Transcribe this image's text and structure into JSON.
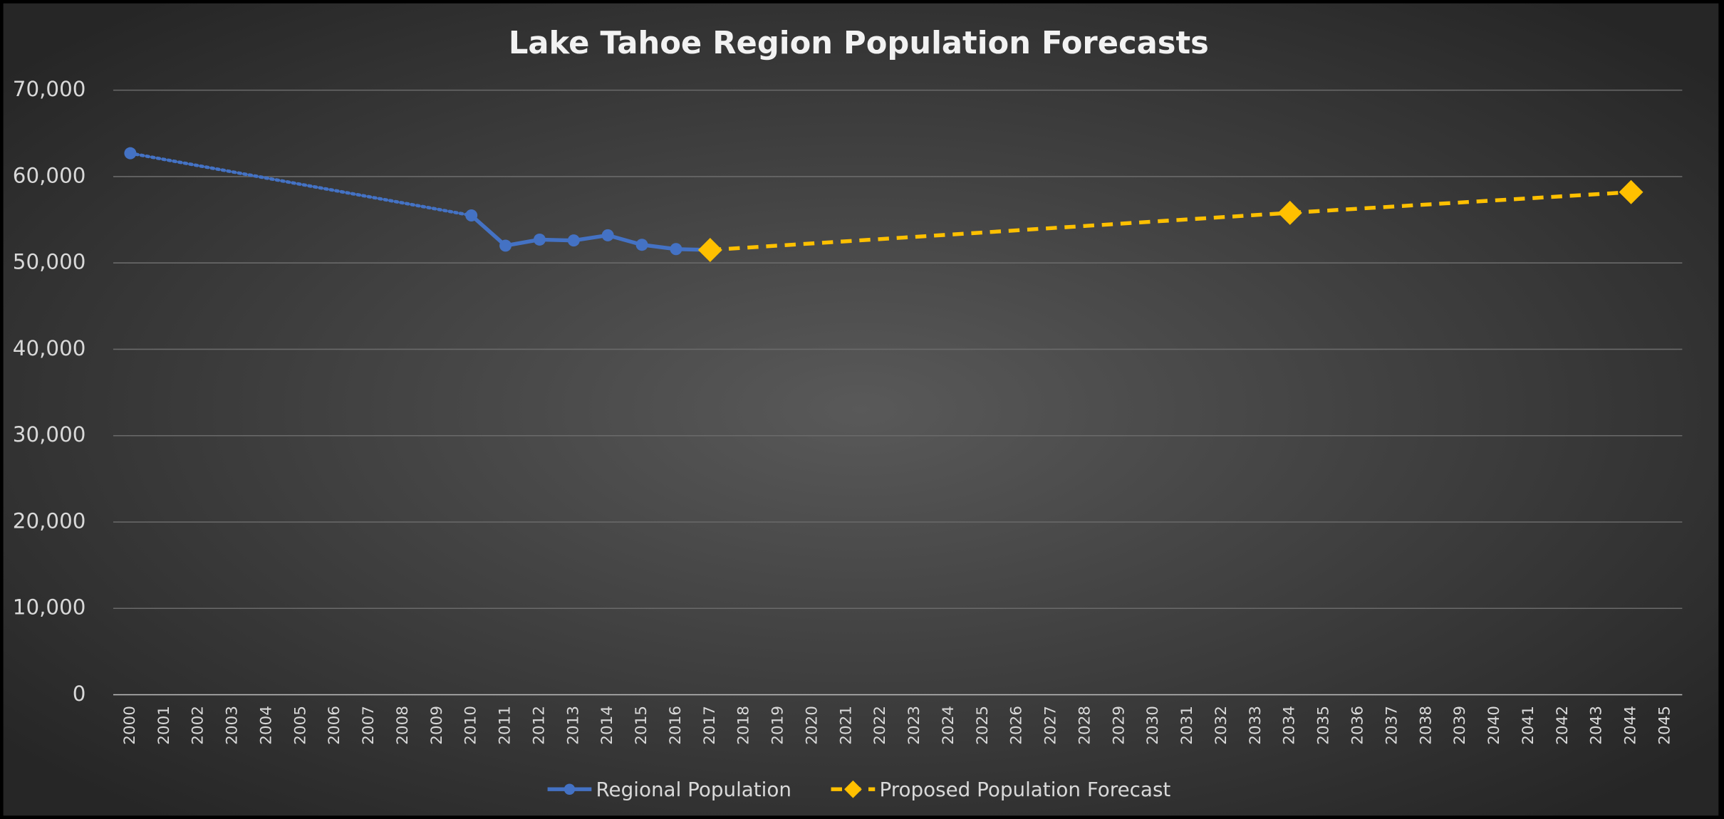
{
  "chart_data": {
    "type": "line",
    "title": "Lake Tahoe Region Population Forecasts",
    "categories": [
      "2000",
      "2001",
      "2002",
      "2003",
      "2004",
      "2005",
      "2006",
      "2007",
      "2008",
      "2009",
      "2010",
      "2011",
      "2012",
      "2013",
      "2014",
      "2015",
      "2016",
      "2017",
      "2018",
      "2019",
      "2020",
      "2021",
      "2022",
      "2023",
      "2024",
      "2025",
      "2026",
      "2027",
      "2028",
      "2029",
      "2030",
      "2031",
      "2032",
      "2033",
      "2034",
      "2035",
      "2036",
      "2037",
      "2038",
      "2039",
      "2040",
      "2041",
      "2042",
      "2043",
      "2044",
      "2045"
    ],
    "series": [
      {
        "name": "Regional Population",
        "color": "#4472c4",
        "marker": "circle",
        "line_style": "solid",
        "values": [
          62700,
          null,
          null,
          null,
          null,
          null,
          null,
          null,
          null,
          null,
          55500,
          52000,
          52700,
          52600,
          53200,
          52100,
          51600,
          51500,
          null,
          null,
          null,
          null,
          null,
          null,
          null,
          null,
          null,
          null,
          null,
          null,
          null,
          null,
          null,
          null,
          null,
          null,
          null,
          null,
          null,
          null,
          null,
          null,
          null,
          null,
          null,
          null
        ]
      },
      {
        "name": "Proposed Population Forecast",
        "color": "#ffc000",
        "marker": "diamond",
        "line_style": "dashed",
        "values": [
          null,
          null,
          null,
          null,
          null,
          null,
          null,
          null,
          null,
          null,
          null,
          null,
          null,
          null,
          null,
          null,
          null,
          51500,
          null,
          null,
          null,
          null,
          null,
          null,
          null,
          null,
          null,
          null,
          null,
          null,
          null,
          null,
          null,
          null,
          55800,
          null,
          null,
          null,
          null,
          null,
          null,
          null,
          null,
          null,
          58200,
          null
        ]
      }
    ],
    "ylim": [
      0,
      70000
    ],
    "yticks": [
      0,
      {
        "value": 10000,
        "label": "10,000"
      },
      {
        "value": 20000,
        "label": "20,000"
      },
      {
        "value": 30000,
        "label": "30,000"
      },
      {
        "value": 40000,
        "label": "40,000"
      },
      {
        "value": 50000,
        "label": "50,000"
      },
      {
        "value": 60000,
        "label": "60,000"
      },
      {
        "value": 70000,
        "label": "70,000"
      }
    ],
    "grid": true,
    "legend": "bottom"
  }
}
